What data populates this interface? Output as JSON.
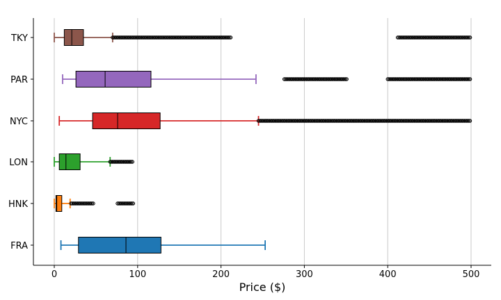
{
  "chart_data": {
    "type": "boxplot",
    "orientation": "horizontal",
    "xlabel": "Price ($)",
    "ylabel": "",
    "title": "",
    "xlim": [
      -25,
      523
    ],
    "xticks": [
      0,
      100,
      200,
      300,
      400,
      500
    ],
    "grid": "vertical",
    "categories": [
      "FRA",
      "HNK",
      "LON",
      "NYC",
      "PAR",
      "TKY"
    ],
    "boxes": [
      {
        "name": "FRA",
        "color": "#1f77b4",
        "whisker_low": 8,
        "q1": 29,
        "median": 86,
        "q3": 128,
        "whisker_high": 253,
        "outlier_ranges": []
      },
      {
        "name": "HNK",
        "color": "#ff7f0e",
        "whisker_low": 0,
        "q1": 2,
        "median": 3,
        "q3": 9,
        "whisker_high": 19,
        "outlier_ranges": [
          [
            20,
            48
          ],
          [
            76,
            95
          ]
        ]
      },
      {
        "name": "LON",
        "color": "#2ca02c",
        "whisker_low": 0,
        "q1": 6,
        "median": 14,
        "q3": 31,
        "whisker_high": 67,
        "outlier_ranges": [
          [
            67,
            95
          ]
        ]
      },
      {
        "name": "NYC",
        "color": "#d62728",
        "whisker_low": 6,
        "q1": 46,
        "median": 76,
        "q3": 127,
        "whisker_high": 245,
        "outlier_ranges": [
          [
            245,
            499
          ]
        ]
      },
      {
        "name": "PAR",
        "color": "#9467bd",
        "whisker_low": 10,
        "q1": 26,
        "median": 61,
        "q3": 116,
        "whisker_high": 242,
        "outlier_ranges": [
          [
            276,
            352
          ],
          [
            400,
            500
          ]
        ]
      },
      {
        "name": "TKY",
        "color": "#8c564b",
        "whisker_low": 0,
        "q1": 12,
        "median": 21,
        "q3": 35,
        "whisker_high": 70,
        "outlier_ranges": [
          [
            70,
            212
          ],
          [
            412,
            500
          ]
        ]
      }
    ]
  }
}
